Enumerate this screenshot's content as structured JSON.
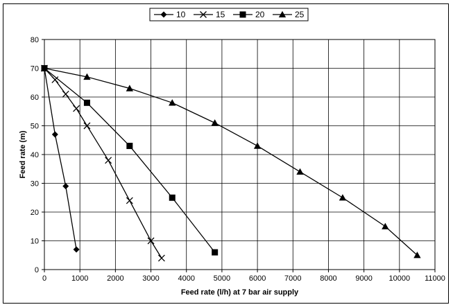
{
  "chart_data": {
    "type": "line",
    "xlabel": "Feed rate (l/h) at 7 bar air supply",
    "ylabel": "Feed rate (m)",
    "xlim": [
      0,
      11000
    ],
    "ylim": [
      0,
      80
    ],
    "x_ticks": [
      0,
      1000,
      2000,
      3000,
      4000,
      5000,
      6000,
      7000,
      8000,
      9000,
      10000,
      11000
    ],
    "y_ticks": [
      0,
      10,
      20,
      30,
      40,
      50,
      60,
      70,
      80
    ],
    "grid": true,
    "legend_position": "top-center",
    "series": [
      {
        "name": "10",
        "marker": "diamond",
        "color": "#000000",
        "x": [
          0,
          300,
          600,
          900
        ],
        "y": [
          70,
          47,
          29,
          7
        ]
      },
      {
        "name": "15",
        "marker": "x",
        "color": "#000000",
        "x": [
          0,
          300,
          600,
          900,
          1200,
          1800,
          2400,
          3000,
          3300
        ],
        "y": [
          70,
          66,
          61,
          56,
          50,
          38,
          24,
          10,
          4
        ]
      },
      {
        "name": "20",
        "marker": "square",
        "color": "#000000",
        "x": [
          0,
          1200,
          2400,
          3600,
          4800
        ],
        "y": [
          70,
          58,
          43,
          25,
          6
        ]
      },
      {
        "name": "25",
        "marker": "triangle",
        "color": "#000000",
        "x": [
          0,
          1200,
          2400,
          3600,
          4800,
          6000,
          7200,
          8400,
          9600,
          10500
        ],
        "y": [
          70,
          67,
          63,
          58,
          51,
          43,
          34,
          25,
          15,
          5
        ]
      }
    ]
  }
}
